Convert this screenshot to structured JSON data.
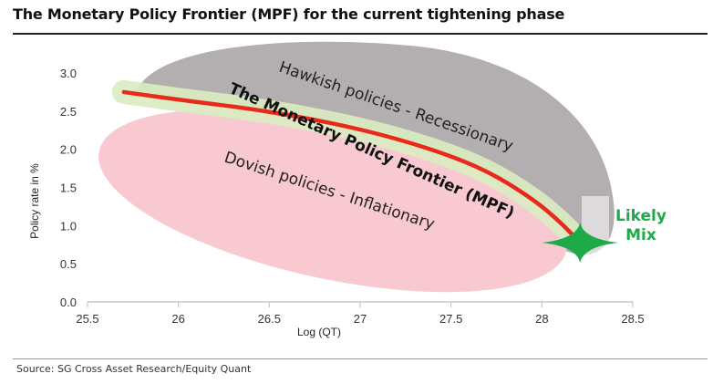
{
  "title": "The Monetary Policy Frontier (MPF) for the current tightening phase",
  "source": "Source: SG Cross Asset Research/Equity Quant",
  "colors": {
    "frontier_line": "#e8291c",
    "frontier_band": "#d9ecc0",
    "hawkish_region": "#b3aeb0",
    "dovish_region": "#f8c9d0",
    "likely_mix": "#1faa4a"
  },
  "chart_data": {
    "type": "line",
    "xlabel": "Log (QT)",
    "ylabel": "Policy rate  in %",
    "xlim": [
      25.5,
      28.5
    ],
    "ylim": [
      0.0,
      3.0
    ],
    "x_ticks": [
      "25.5",
      "26",
      "26.5",
      "27",
      "27.5",
      "28",
      "28.5"
    ],
    "y_ticks": [
      "0.0",
      "0.5",
      "1.0",
      "1.5",
      "2.0",
      "2.5",
      "3.0"
    ],
    "grid": false,
    "series": [
      {
        "name": "The Monetary Policy Frontier (MPF)",
        "x": [
          25.7,
          26.0,
          26.5,
          27.0,
          27.4,
          27.7,
          27.95,
          28.1,
          28.2
        ],
        "y": [
          2.75,
          2.65,
          2.5,
          2.27,
          2.0,
          1.72,
          1.35,
          1.05,
          0.8
        ]
      }
    ],
    "annotations": {
      "hawkish": "Hawkish policies  -  Recessionary",
      "dovish": "Dovish policies -  Inflationary",
      "frontier": "The Monetary Policy Frontier (MPF)",
      "likely_mix_line1": "Likely",
      "likely_mix_line2": "Mix",
      "likely_mix_point": {
        "x": 28.2,
        "y": 0.8
      }
    }
  }
}
